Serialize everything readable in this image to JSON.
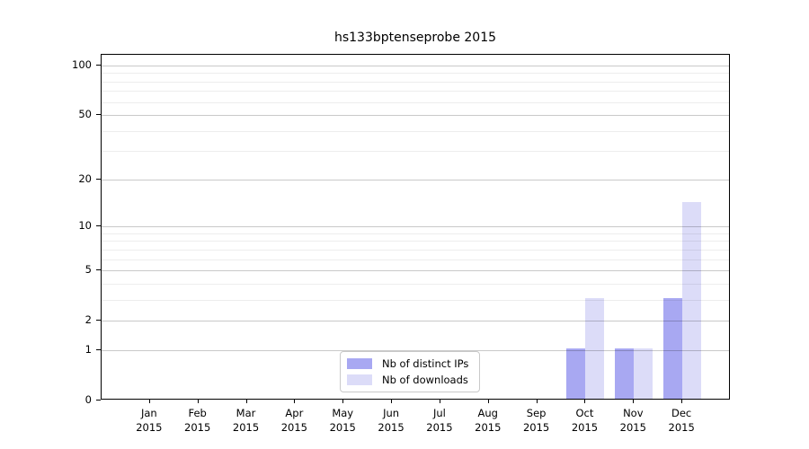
{
  "chart_data": {
    "type": "bar",
    "title": "hs133bptenseprobe 2015",
    "categories": [
      "Jan",
      "Feb",
      "Mar",
      "Apr",
      "May",
      "Jun",
      "Jul",
      "Aug",
      "Sep",
      "Oct",
      "Nov",
      "Dec"
    ],
    "category_year": "2015",
    "series": [
      {
        "name": "Nb of distinct IPs",
        "color": "#a8a8f2",
        "values": [
          0,
          0,
          0,
          0,
          0,
          0,
          0,
          0,
          0,
          1,
          1,
          3
        ]
      },
      {
        "name": "Nb of downloads",
        "color": "#dcdcf8",
        "values": [
          0,
          0,
          0,
          0,
          0,
          0,
          0,
          0,
          0,
          3,
          1,
          14
        ]
      }
    ],
    "xlabel": "",
    "ylabel": "",
    "yscale": "log1p",
    "ylim": [
      0,
      116
    ],
    "y_major_ticks": [
      0,
      1,
      2,
      5,
      10,
      20,
      50,
      100
    ],
    "y_minor_gridlines": [
      3,
      4,
      6,
      7,
      8,
      9,
      30,
      40,
      60,
      70,
      80,
      90
    ],
    "grid": true,
    "legend_position": "lower center-left inside plot"
  },
  "colors": {
    "major_grid": "rgba(0,0,0,0.21)",
    "minor_grid": "rgba(0,0,0,0.07)",
    "axis": "#000000",
    "text": "#000000",
    "background": "#ffffff"
  }
}
